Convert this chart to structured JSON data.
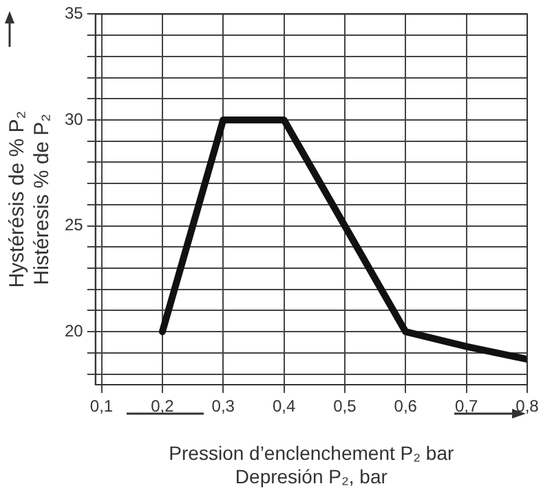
{
  "chart_data": {
    "type": "line",
    "xlabel": "Pression d’enclenchement P₂ bar\nDepresión P₂, bar",
    "ylabel": "Hystérésis de % P₂\nHistéresis % de P₂",
    "x": [
      0.2,
      0.3,
      0.4,
      0.6,
      0.7,
      0.8
    ],
    "series": [
      {
        "color": "#111111",
        "values": [
          20,
          30,
          30,
          20,
          19.3,
          18.7
        ]
      }
    ],
    "xlim": [
      0.09,
      0.8
    ],
    "xticks": [
      {
        "value": 0.1,
        "label": "0,1"
      },
      {
        "value": 0.2,
        "label": "0,2"
      },
      {
        "value": 0.3,
        "label": "0,3"
      },
      {
        "value": 0.4,
        "label": "0,4"
      },
      {
        "value": 0.5,
        "label": "0,5"
      },
      {
        "value": 0.6,
        "label": "0,6"
      },
      {
        "value": 0.7,
        "label": "0,7"
      },
      {
        "value": 0.8,
        "label": "0,8"
      }
    ],
    "ylim": [
      17.5,
      35
    ],
    "yticks": [
      {
        "value": 18,
        "label": null
      },
      {
        "value": 19,
        "label": null
      },
      20,
      {
        "value": 21,
        "label": null
      },
      {
        "value": 22,
        "label": null
      },
      {
        "value": 23,
        "label": null
      },
      {
        "value": 24,
        "label": null
      },
      25,
      {
        "value": 26,
        "label": null
      },
      {
        "value": 27,
        "label": null
      },
      {
        "value": 28,
        "label": null
      },
      {
        "value": 29,
        "label": null
      },
      30,
      {
        "value": 31,
        "label": null
      },
      {
        "value": 32,
        "label": null
      },
      {
        "value": 33,
        "label": null
      },
      {
        "value": 34,
        "label": null
      },
      35
    ],
    "grid": true,
    "legend": false,
    "marker": "none",
    "line_style": "solid"
  }
}
